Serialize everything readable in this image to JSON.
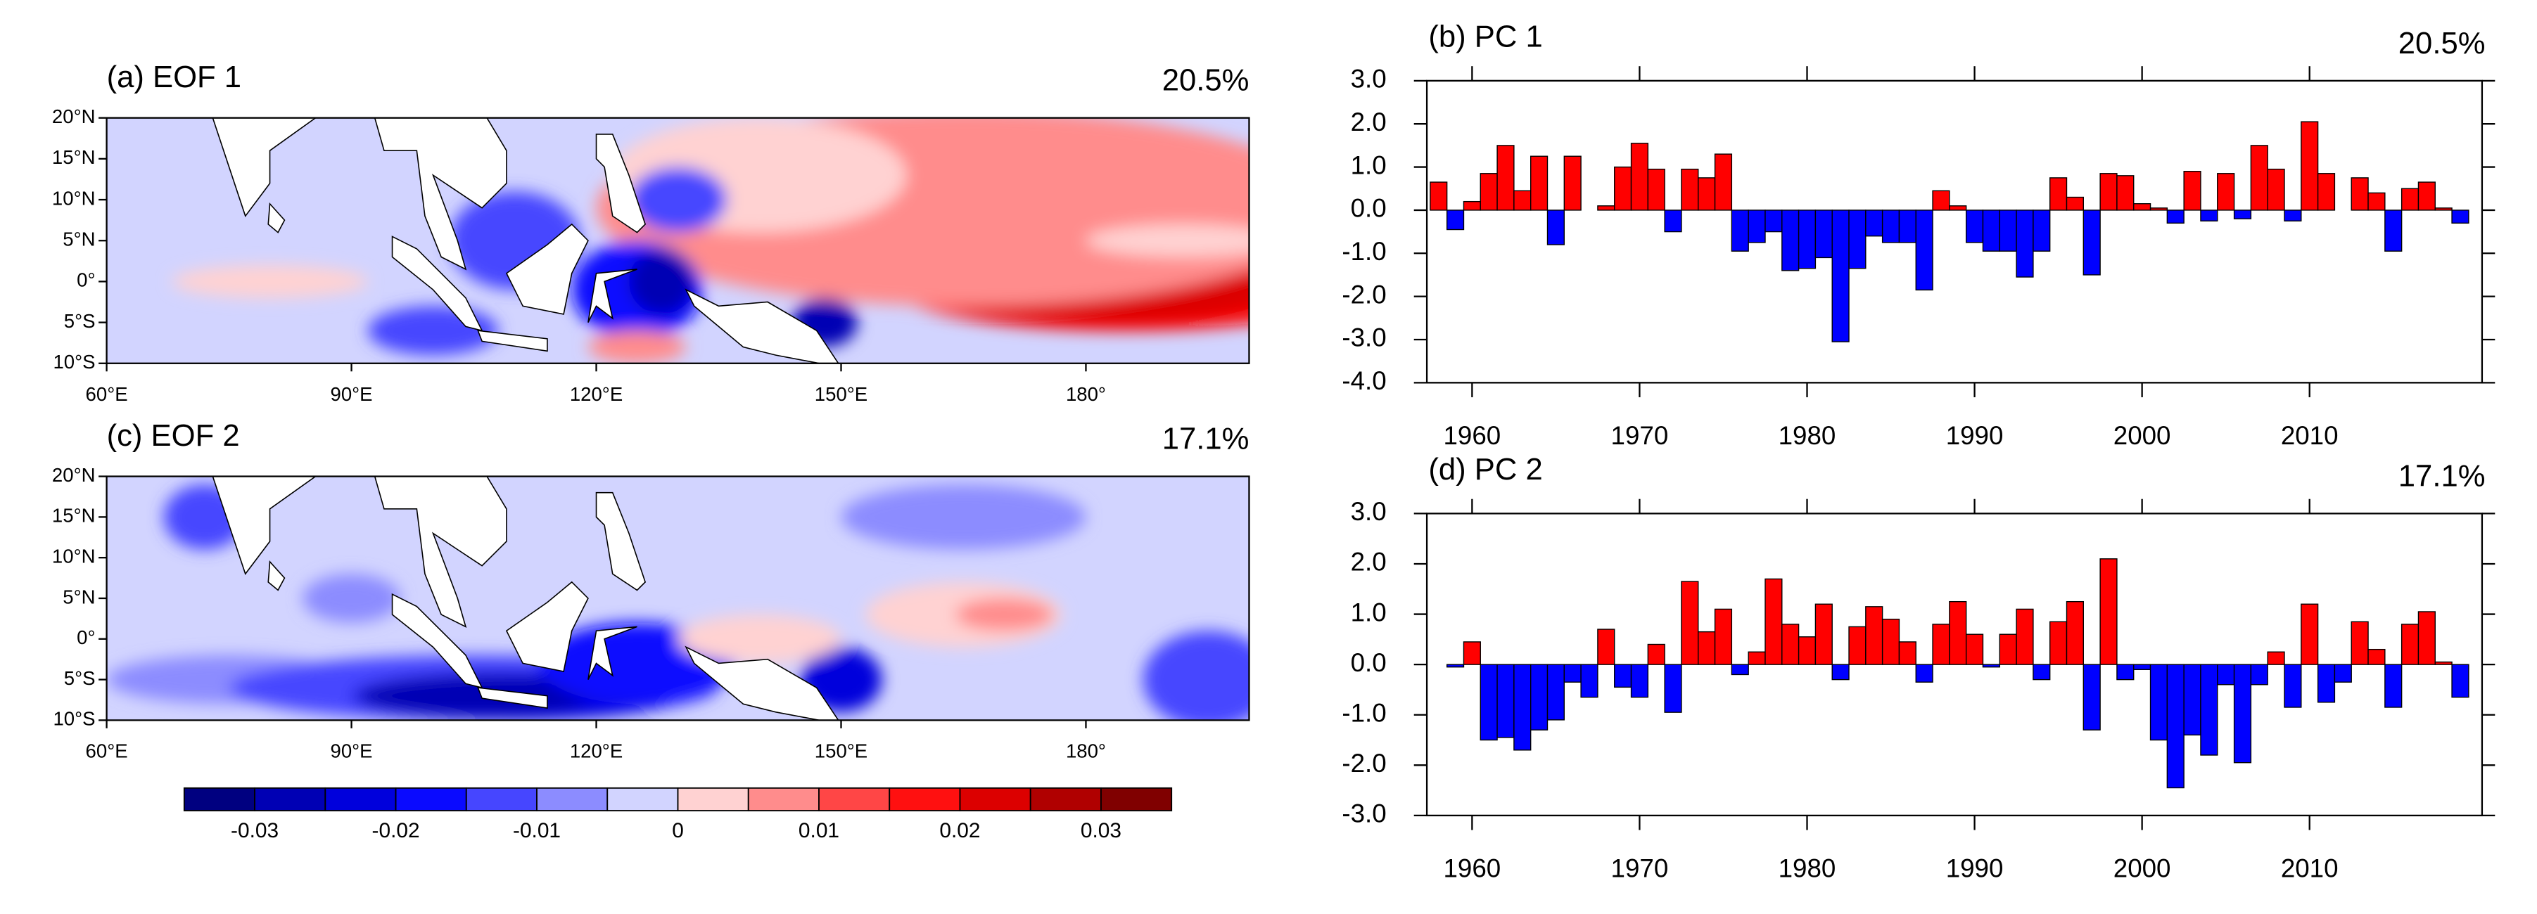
{
  "chart_data": [
    {
      "type": "map",
      "title": "(a) EOF 1",
      "annotation": "20.5%",
      "xlim": [
        60,
        200
      ],
      "ylim": [
        -10,
        20
      ],
      "xticks": [
        {
          "value": 60,
          "label": "60°E"
        },
        {
          "value": 90,
          "label": "90°E"
        },
        {
          "value": 120,
          "label": "120°E"
        },
        {
          "value": 150,
          "label": "150°E"
        },
        {
          "value": 180,
          "label": "180°"
        }
      ],
      "yticks": [
        {
          "value": 20,
          "label": "20°N"
        },
        {
          "value": 15,
          "label": "15°N"
        },
        {
          "value": 10,
          "label": "10°N"
        },
        {
          "value": 5,
          "label": "5°N"
        },
        {
          "value": 0,
          "label": "0°"
        },
        {
          "value": -5,
          "label": "5°S"
        },
        {
          "value": -10,
          "label": "10°S"
        }
      ]
    },
    {
      "type": "map",
      "title": "(c) EOF 2",
      "annotation": "17.1%",
      "xlim": [
        60,
        200
      ],
      "ylim": [
        -10,
        20
      ],
      "xticks": [
        {
          "value": 60,
          "label": "60°E"
        },
        {
          "value": 90,
          "label": "90°E"
        },
        {
          "value": 120,
          "label": "120°E"
        },
        {
          "value": 150,
          "label": "150°E"
        },
        {
          "value": 180,
          "label": "180°"
        }
      ],
      "yticks": [
        {
          "value": 20,
          "label": "20°N"
        },
        {
          "value": 15,
          "label": "15°N"
        },
        {
          "value": 10,
          "label": "10°N"
        },
        {
          "value": 5,
          "label": "5°N"
        },
        {
          "value": 0,
          "label": "0°"
        },
        {
          "value": -5,
          "label": "5°S"
        },
        {
          "value": -10,
          "label": "10°S"
        }
      ]
    },
    {
      "type": "colorbar",
      "lim": [
        -0.035,
        0.035
      ],
      "ticks": [
        -0.03,
        -0.02,
        -0.01,
        0,
        0.01,
        0.02,
        0.03
      ],
      "colors": [
        "#000080",
        "#0000b4",
        "#0000dc",
        "#0a0aff",
        "#4646ff",
        "#8c8cff",
        "#d2d4ff",
        "#ffd2d2",
        "#ff8c8c",
        "#ff4646",
        "#ff1010",
        "#dc0000",
        "#b00000",
        "#800000"
      ]
    },
    {
      "type": "bar",
      "title": "(b) PC 1",
      "annotation": "20.5%",
      "pos_color": "#ff0000",
      "neg_color": "#0000ff",
      "x": [
        1958,
        1959,
        1960,
        1961,
        1962,
        1963,
        1964,
        1965,
        1966,
        1967,
        1968,
        1969,
        1970,
        1971,
        1972,
        1973,
        1974,
        1975,
        1976,
        1977,
        1978,
        1979,
        1980,
        1981,
        1982,
        1983,
        1984,
        1985,
        1986,
        1987,
        1988,
        1989,
        1990,
        1991,
        1992,
        1993,
        1994,
        1995,
        1996,
        1997,
        1998,
        1999,
        2000,
        2001,
        2002,
        2003,
        2004,
        2005,
        2006,
        2007,
        2008,
        2009,
        2010,
        2011,
        2012,
        2013,
        2014,
        2015,
        2016,
        2017,
        2018,
        2019
      ],
      "values": [
        0.65,
        -0.45,
        0.2,
        0.85,
        1.5,
        0.45,
        1.25,
        -0.8,
        1.25,
        0,
        0.1,
        1.0,
        1.55,
        0.95,
        -0.5,
        0.95,
        0.75,
        1.3,
        -0.95,
        -0.75,
        -0.5,
        -1.4,
        -1.35,
        -1.1,
        -3.05,
        -1.35,
        -0.6,
        -0.75,
        -0.75,
        -1.85,
        0.45,
        0.1,
        -0.75,
        -0.95,
        -0.95,
        -1.55,
        -0.95,
        0.75,
        0.3,
        -1.5,
        0.85,
        0.8,
        0.15,
        0.05,
        -0.3,
        0.9,
        -0.25,
        0.85,
        -0.2,
        1.5,
        0.95,
        -0.25,
        2.05,
        0.85,
        0,
        0.75,
        0.4,
        -0.95,
        0.5,
        0.65,
        0.05,
        -0.3
      ],
      "xlim": [
        1957.3,
        2020.3
      ],
      "xticks": [
        1960,
        1970,
        1980,
        1990,
        2000,
        2010
      ],
      "ylim": [
        -4,
        3
      ],
      "yticks": [
        {
          "value": 3,
          "label": "3.0"
        },
        {
          "value": 2,
          "label": "2.0"
        },
        {
          "value": 1,
          "label": "1.0"
        },
        {
          "value": 0,
          "label": "0.0"
        },
        {
          "value": -1,
          "label": "-1.0"
        },
        {
          "value": -2,
          "label": "-2.0"
        },
        {
          "value": -3,
          "label": "-3.0"
        },
        {
          "value": -4,
          "label": "-4.0"
        }
      ]
    },
    {
      "type": "bar",
      "title": "(d) PC 2",
      "annotation": "17.1%",
      "pos_color": "#ff0000",
      "neg_color": "#0000ff",
      "x": [
        1958,
        1959,
        1960,
        1961,
        1962,
        1963,
        1964,
        1965,
        1966,
        1967,
        1968,
        1969,
        1970,
        1971,
        1972,
        1973,
        1974,
        1975,
        1976,
        1977,
        1978,
        1979,
        1980,
        1981,
        1982,
        1983,
        1984,
        1985,
        1986,
        1987,
        1988,
        1989,
        1990,
        1991,
        1992,
        1993,
        1994,
        1995,
        1996,
        1997,
        1998,
        1999,
        2000,
        2001,
        2002,
        2003,
        2004,
        2005,
        2006,
        2007,
        2008,
        2009,
        2010,
        2011,
        2012,
        2013,
        2014,
        2015,
        2016,
        2017,
        2018,
        2019
      ],
      "values": [
        0,
        -0.05,
        0.45,
        -1.5,
        -1.45,
        -1.7,
        -1.3,
        -1.1,
        -0.35,
        -0.65,
        0.7,
        -0.45,
        -0.65,
        0.4,
        -0.95,
        1.65,
        0.65,
        1.1,
        -0.2,
        0.25,
        1.7,
        0.8,
        0.55,
        1.2,
        -0.3,
        0.75,
        1.15,
        0.9,
        0.45,
        -0.35,
        0.8,
        1.25,
        0.6,
        -0.05,
        0.6,
        1.1,
        -0.3,
        0.85,
        1.25,
        -1.3,
        2.1,
        -0.3,
        -0.1,
        -1.5,
        -2.45,
        -1.4,
        -1.8,
        -0.4,
        -1.95,
        -0.4,
        0.25,
        -0.85,
        1.2,
        -0.75,
        -0.35,
        0.85,
        0.3,
        -0.85,
        0.8,
        1.05,
        0.05,
        -0.65
      ],
      "xlim": [
        1957.3,
        2020.3
      ],
      "xticks": [
        1960,
        1970,
        1980,
        1990,
        2000,
        2010
      ],
      "ylim": [
        -3,
        3
      ],
      "yticks": [
        {
          "value": 3,
          "label": "3.0"
        },
        {
          "value": 2,
          "label": "2.0"
        },
        {
          "value": 1,
          "label": "1.0"
        },
        {
          "value": 0,
          "label": "0.0"
        },
        {
          "value": -1,
          "label": "-1.0"
        },
        {
          "value": -2,
          "label": "-2.0"
        },
        {
          "value": -3,
          "label": "-3.0"
        }
      ]
    }
  ]
}
